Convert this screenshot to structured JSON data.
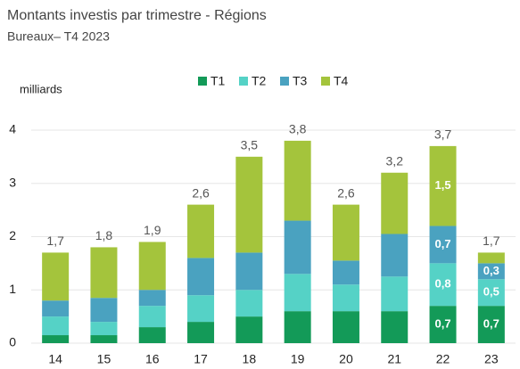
{
  "chart_data": {
    "type": "stacked_bar",
    "title": "Montants investis par trimestre - Régions",
    "subtitle": "Bureaux– T4 2023",
    "y_label": "milliards",
    "categories": [
      "14",
      "15",
      "16",
      "17",
      "18",
      "19",
      "20",
      "21",
      "22",
      "23"
    ],
    "series": [
      {
        "name": "T1",
        "color": "#139a58",
        "values": [
          0.15,
          0.15,
          0.3,
          0.4,
          0.5,
          0.6,
          0.6,
          0.6,
          0.7,
          0.7
        ],
        "value_labels": [
          null,
          null,
          null,
          null,
          null,
          null,
          null,
          null,
          "0,7",
          "0,7"
        ]
      },
      {
        "name": "T2",
        "color": "#55d2c6",
        "values": [
          0.35,
          0.25,
          0.4,
          0.5,
          0.5,
          0.7,
          0.5,
          0.65,
          0.8,
          0.5
        ],
        "value_labels": [
          null,
          null,
          null,
          null,
          null,
          null,
          null,
          null,
          "0,8",
          "0,5"
        ]
      },
      {
        "name": "T3",
        "color": "#4aa2c0",
        "values": [
          0.3,
          0.45,
          0.3,
          0.7,
          0.7,
          1.0,
          0.45,
          0.8,
          0.7,
          0.3
        ],
        "value_labels": [
          null,
          null,
          null,
          null,
          null,
          null,
          null,
          null,
          "0,7",
          "0,3"
        ]
      },
      {
        "name": "T4",
        "color": "#a4c43c",
        "values": [
          0.9,
          0.95,
          0.9,
          1.0,
          1.8,
          1.5,
          1.05,
          1.15,
          1.5,
          0.2
        ],
        "value_labels": [
          null,
          null,
          null,
          null,
          null,
          null,
          null,
          null,
          "1,5",
          null
        ]
      }
    ],
    "totals": [
      1.7,
      1.8,
      1.9,
      2.6,
      3.5,
      3.8,
      2.6,
      3.2,
      3.7,
      1.7
    ],
    "total_labels": [
      "1,7",
      "1,8",
      "1,9",
      "2,6",
      "3,5",
      "3,8",
      "2,6",
      "3,2",
      "3,7",
      "1,7"
    ],
    "ylim": [
      0,
      4.2
    ],
    "yticks": [
      0,
      1,
      2,
      3,
      4
    ],
    "grid": true,
    "legend": "top"
  }
}
